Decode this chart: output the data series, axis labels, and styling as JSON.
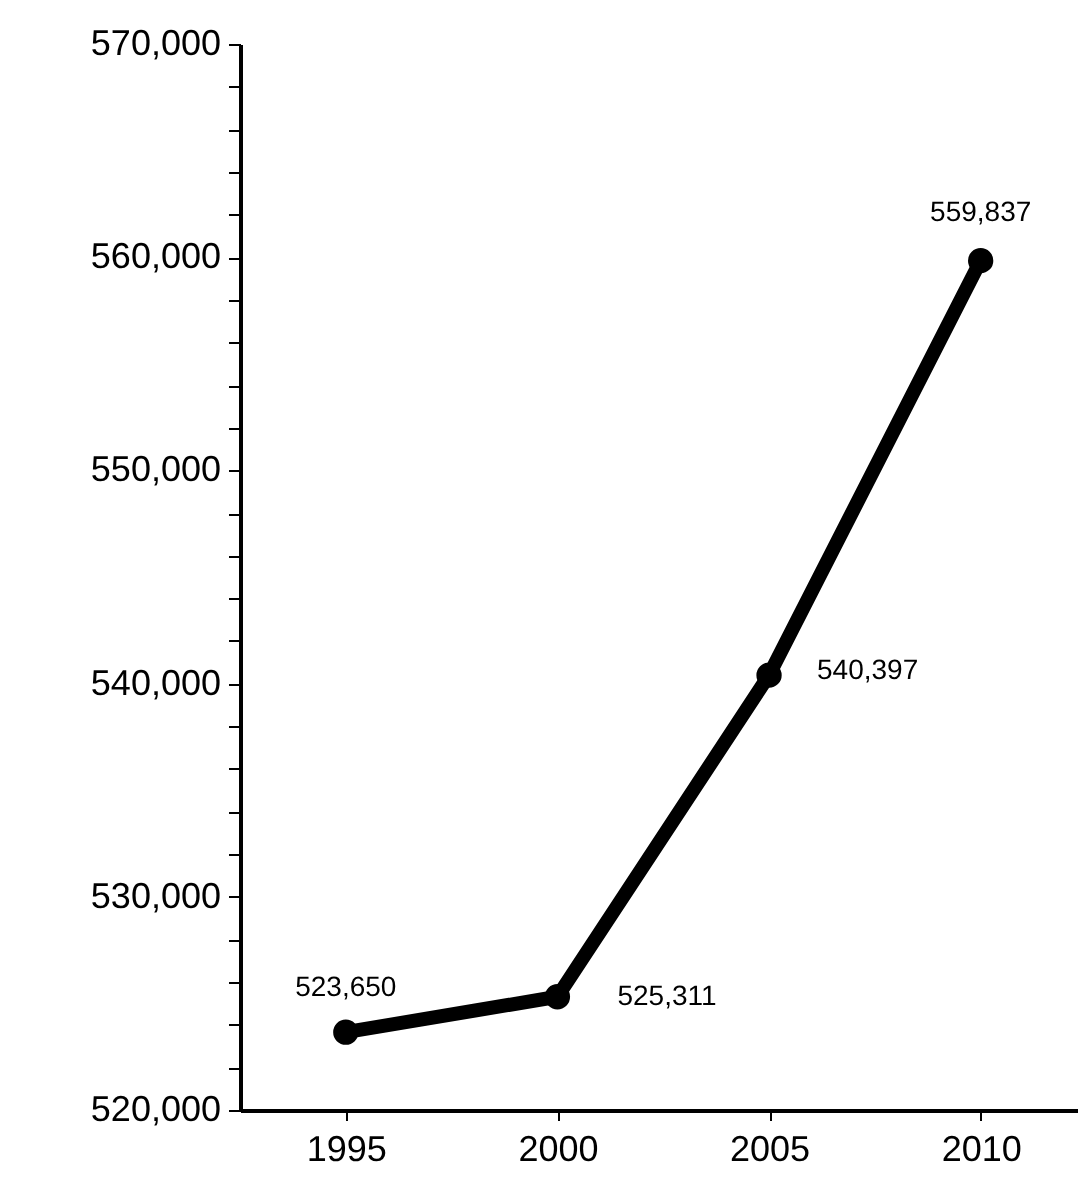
{
  "chart_data": {
    "type": "line",
    "x": [
      1995,
      2000,
      2005,
      2010
    ],
    "series": [
      {
        "color": "#000000",
        "values": [
          523650,
          525311,
          540397,
          559837
        ],
        "value_labels": [
          "523,650",
          "525,311",
          "540,397",
          "559,837"
        ]
      }
    ],
    "marker": "circle",
    "line_style": "solid",
    "grid": false,
    "xlim": [
      1992.5,
      2012.3
    ],
    "xticks": [
      1995,
      2000,
      2005,
      2010
    ],
    "ylim": [
      520000,
      570000
    ],
    "yticks": [
      {
        "value": 520000,
        "label": "520,000"
      },
      {
        "value": 522000,
        "label": null
      },
      {
        "value": 524000,
        "label": null
      },
      {
        "value": 526000,
        "label": null
      },
      {
        "value": 528000,
        "label": null
      },
      {
        "value": 530000,
        "label": "530,000"
      },
      {
        "value": 532000,
        "label": null
      },
      {
        "value": 534000,
        "label": null
      },
      {
        "value": 536000,
        "label": null
      },
      {
        "value": 538000,
        "label": null
      },
      {
        "value": 540000,
        "label": "540,000"
      },
      {
        "value": 542000,
        "label": null
      },
      {
        "value": 544000,
        "label": null
      },
      {
        "value": 546000,
        "label": null
      },
      {
        "value": 548000,
        "label": null
      },
      {
        "value": 550000,
        "label": "550,000"
      },
      {
        "value": 552000,
        "label": null
      },
      {
        "value": 554000,
        "label": null
      },
      {
        "value": 556000,
        "label": null
      },
      {
        "value": 558000,
        "label": null
      },
      {
        "value": 560000,
        "label": "560,000"
      },
      {
        "value": 562000,
        "label": null
      },
      {
        "value": 564000,
        "label": null
      },
      {
        "value": 566000,
        "label": null
      },
      {
        "value": 568000,
        "label": null
      },
      {
        "value": 570000,
        "label": "570,000"
      }
    ]
  }
}
